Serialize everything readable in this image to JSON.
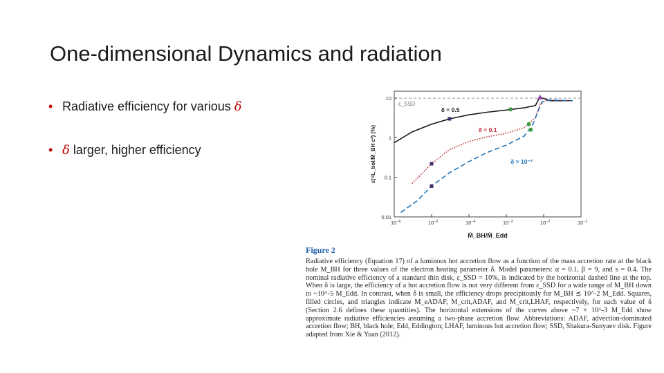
{
  "slide": {
    "title": "One-dimensional Dynamics and radiation",
    "bullets": [
      {
        "marker": "•",
        "text": "Radiative efficiency for various ",
        "greek": "δ",
        "after": ""
      },
      {
        "marker": "•",
        "text": "",
        "greek": "δ",
        "after": " larger, higher efficiency"
      }
    ]
  },
  "figure": {
    "caption_heading": "Figure 2",
    "caption_text": "Radiative efficiency (Equation 17) of a luminous hot accretion flow as a function of the mass accretion rate at the black hole M_BH for three values of the electron heating parameter δ. Model parameters: α = 0.1, β = 9, and s = 0.4. The nominal radiative efficiency of a standard thin disk, ε_SSD = 10%, is indicated by the horizontal dashed line at the top. When δ is large, the efficiency of a hot accretion flow is not very different from ε_SSD for a wide range of M_BH down to ~10^-5 M_Edd. In contrast, when δ is small, the efficiency drops precipitously for M_BH ≲ 10^-2 M_Edd. Squares, filled circles, and triangles indicate M_eADAF, M_crit,ADAF, and M_crit,LHAF, respectively, for each value of δ (Section 2.6 defines these quantities). The horizontal extensions of the curves above ~7 × 10^-3 M_Edd show approximate radiative efficiencies assuming a two-phase accretion flow. Abbreviations: ADAF, advection-dominated accretion flow; BH, black hole; Edd, Eddington; LHAF, luminous hot accretion flow; SSD, Shakura-Sunyaev disk. Figure adapted from Xie & Yuan (2012).",
    "chart_data": {
      "type": "line",
      "xlabel": "Ṁ_BH/Ṁ_Edd",
      "ylabel": "ε(=L_bol/Ṁ_BH c²) (%)",
      "xscale": "log",
      "yscale": "log",
      "xlim": [
        1e-06,
        0.1
      ],
      "ylim": [
        0.01,
        15
      ],
      "x_ticks": [
        {
          "value": 1e-06,
          "base": "10",
          "exp": "−6"
        },
        {
          "value": 1e-05,
          "base": "10",
          "exp": "−5"
        },
        {
          "value": 0.0001,
          "base": "10",
          "exp": "−4"
        },
        {
          "value": 0.001,
          "base": "10",
          "exp": "−3"
        },
        {
          "value": 0.01,
          "base": "10",
          "exp": "−2"
        },
        {
          "value": 0.1,
          "base": "10",
          "exp": "−1"
        }
      ],
      "y_ticks": [
        {
          "value": 0.01,
          "label": "0.01"
        },
        {
          "value": 0.1,
          "label": "0.1"
        },
        {
          "value": 1,
          "label": "1"
        },
        {
          "value": 10,
          "label": "10"
        }
      ],
      "reference_line": {
        "label": "ε_SSD",
        "value": 10
      },
      "series": [
        {
          "name": "δ = 0.5",
          "color": "#1a1a1a",
          "dash": "solid",
          "label_at": [
            1.8e-05,
            4.5
          ],
          "points": [
            [
              1e-06,
              0.75
            ],
            [
              3e-06,
              1.4
            ],
            [
              1e-05,
              2.2
            ],
            [
              3e-05,
              3.0
            ],
            [
              0.0001,
              3.8
            ],
            [
              0.0003,
              4.4
            ],
            [
              0.001,
              5.0
            ],
            [
              0.003,
              5.7
            ],
            [
              0.006,
              6.5
            ],
            [
              0.007,
              8.5
            ],
            [
              0.008,
              10.5
            ],
            [
              0.015,
              8.6
            ],
            [
              0.06,
              8.6
            ]
          ]
        },
        {
          "name": "δ = 0.1",
          "color": "#c0272d",
          "dash": "dotted",
          "label_at": [
            0.00018,
            1.4
          ],
          "points": [
            [
              3e-06,
              0.07
            ],
            [
              1e-05,
              0.22
            ],
            [
              3e-05,
              0.5
            ],
            [
              0.0001,
              0.8
            ],
            [
              0.0003,
              1.05
            ],
            [
              0.001,
              1.3
            ],
            [
              0.003,
              1.8
            ],
            [
              0.006,
              3.2
            ],
            [
              0.008,
              7.0
            ],
            [
              0.012,
              9.0
            ],
            [
              0.06,
              8.6
            ]
          ]
        },
        {
          "name": "δ = 10⁻³",
          "color": "#1f73b7",
          "dash": "dashed",
          "label_at": [
            0.0013,
            0.22
          ],
          "points": [
            [
              1.5e-06,
              0.013
            ],
            [
              4e-06,
              0.025
            ],
            [
              1e-05,
              0.06
            ],
            [
              3e-05,
              0.13
            ],
            [
              0.0001,
              0.25
            ],
            [
              0.0003,
              0.42
            ],
            [
              0.001,
              0.65
            ],
            [
              0.003,
              1.1
            ],
            [
              0.005,
              2.0
            ],
            [
              0.007,
              4.5
            ],
            [
              0.009,
              8.0
            ],
            [
              0.015,
              9.0
            ],
            [
              0.06,
              8.6
            ]
          ]
        }
      ],
      "markers": [
        {
          "shape": "square",
          "color": "#3d2a6b",
          "series": "δ = 0.5",
          "x": 3e-05,
          "y": 3.0
        },
        {
          "shape": "square",
          "color": "#3d2a6b",
          "series": "δ = 0.1",
          "x": 1e-05,
          "y": 0.22
        },
        {
          "shape": "square",
          "color": "#3d2a6b",
          "series": "δ = 10⁻³",
          "x": 1e-05,
          "y": 0.06
        },
        {
          "shape": "circle",
          "color": "#3e9a42",
          "series": "δ = 0.5",
          "x": 0.0013,
          "y": 5.2
        },
        {
          "shape": "circle",
          "color": "#3e9a42",
          "series": "δ = 0.1",
          "x": 0.004,
          "y": 2.2
        },
        {
          "shape": "circle",
          "color": "#3e9a42",
          "series": "δ = 10⁻³",
          "x": 0.0045,
          "y": 1.6
        },
        {
          "shape": "triangle",
          "color": "#8e44ad",
          "series": "δ = 0.5",
          "x": 0.008,
          "y": 10.5
        }
      ]
    }
  }
}
